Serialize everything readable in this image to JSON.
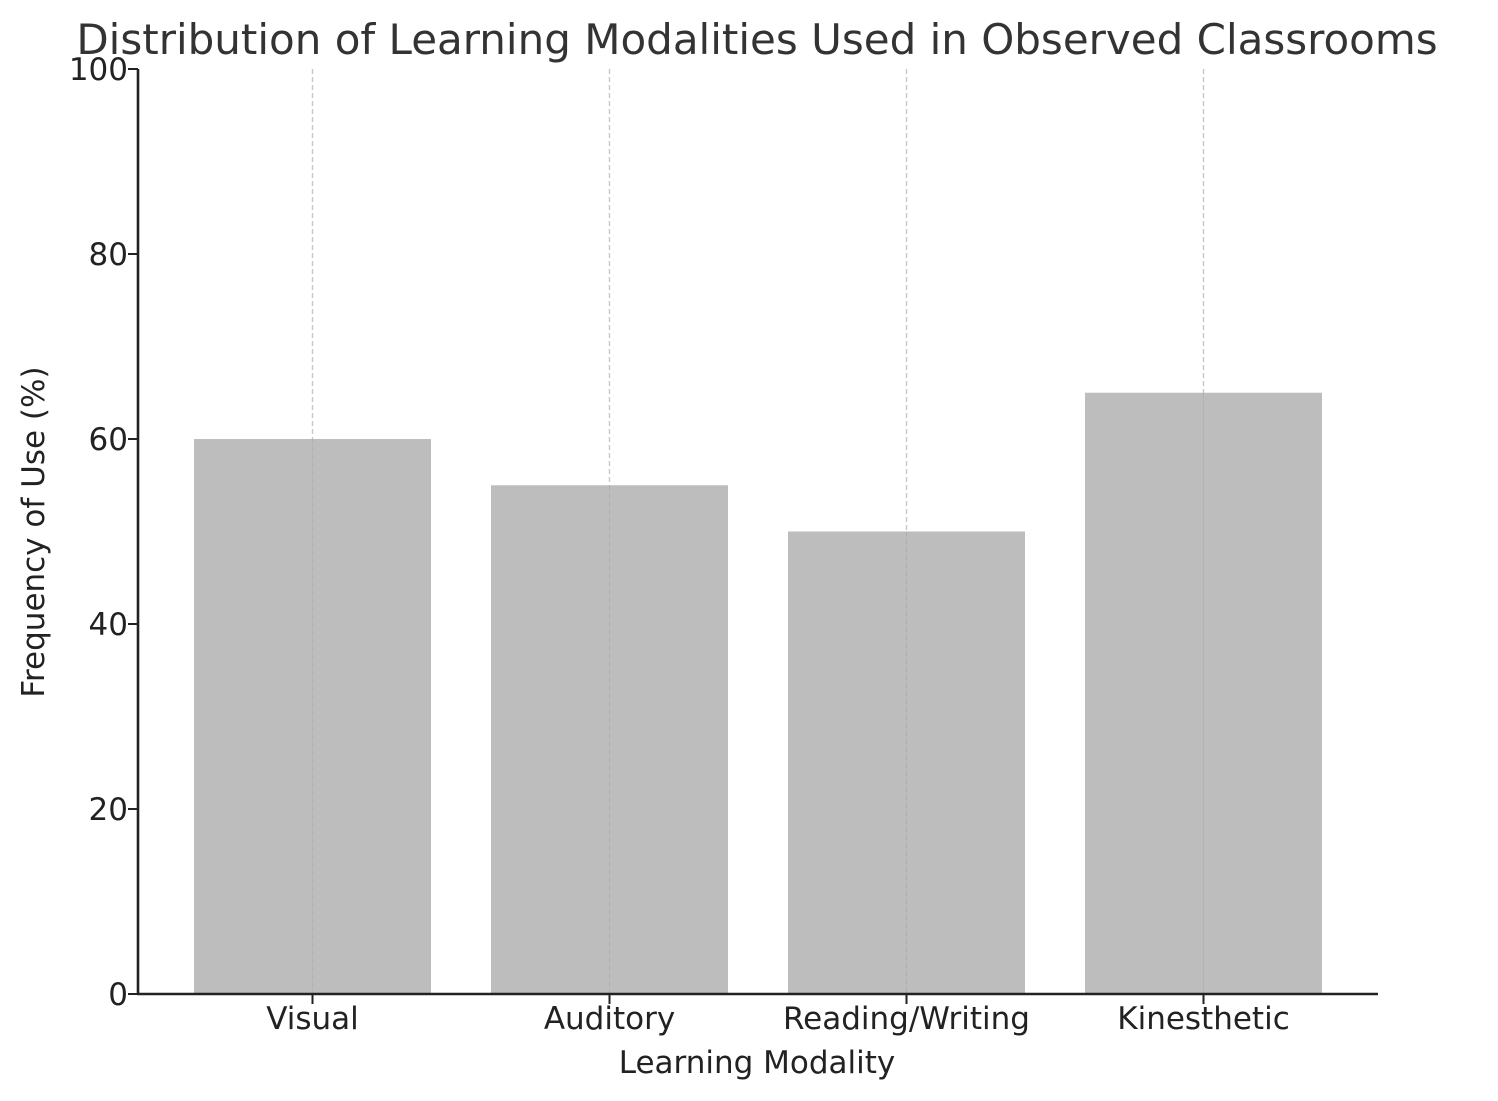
{
  "chart_data": {
    "type": "bar",
    "title": "Distribution of Learning Modalities Used in Observed Classrooms",
    "xlabel": "Learning Modality",
    "ylabel": "Frequency of Use (%)",
    "categories": [
      "Visual",
      "Auditory",
      "Reading/Writing",
      "Kinesthetic"
    ],
    "values": [
      60,
      55,
      50,
      65
    ],
    "ylim": [
      0,
      100
    ],
    "yticks": [
      0,
      20,
      40,
      60,
      80,
      100
    ],
    "grid": "x-dashed",
    "bar_color": "#b8b8b8",
    "axis_color": "#222222",
    "grid_color": "#c8c8c8"
  }
}
